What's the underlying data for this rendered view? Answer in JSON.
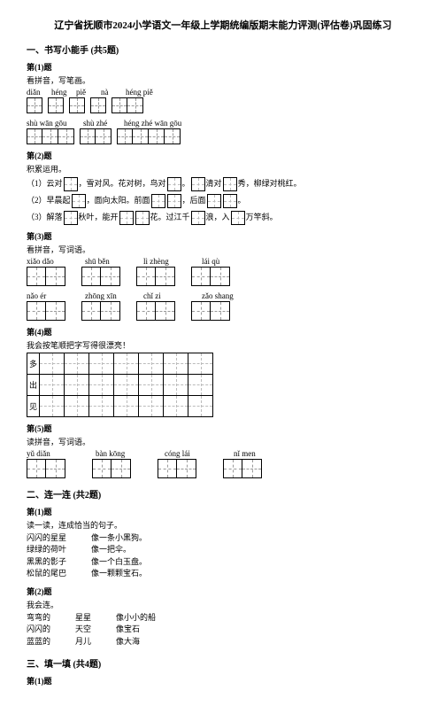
{
  "title": "辽宁省抚顺市2024小学语文一年级上学期统编版期末能力评测(评估卷)巩固练习",
  "sections": {
    "s1": {
      "heading": "一、书写小能手 (共5题)"
    },
    "s2": {
      "heading": "二、连一连 (共2题)"
    },
    "s3": {
      "heading": "三、填一填 (共4题)"
    }
  },
  "q1": {
    "num": "第(1)题",
    "text": "看拼音，写笔画。",
    "row1_pinyin": [
      "diǎn",
      "héng",
      "piě",
      "nà",
      "héng piě"
    ],
    "row2_pinyin": [
      "shù wān gōu",
      "shù zhé",
      "héng zhé wān gōu"
    ]
  },
  "q2": {
    "num": "第(2)题",
    "text": "积累运用。",
    "line1a": "（1）云对",
    "line1b": "，雪对风。花对树，鸟对",
    "line1c": "。",
    "line1d": "清对",
    "line1e": "秀，柳绿对桃红。",
    "line2a": "（2）早晨起",
    "line2b": "，面向太阳。前面",
    "line2c": "，后面",
    "line2d": "。",
    "line3a": "（3）解落",
    "line3b": "秋叶，能开",
    "line3c": "花。过江千",
    "line3d": "浪，入",
    "line3e": "万竿斜。"
  },
  "q3": {
    "num": "第(3)题",
    "text": "看拼音，写词语。",
    "row1_labels": [
      "xiǎo  dǎo",
      "shū  běn",
      "lì  zhèng",
      "lái  qù"
    ],
    "row2_labels": [
      "nǎo  ér",
      "zhōng  xīn",
      "chǐ  zi",
      "zǎo  shang"
    ]
  },
  "q4": {
    "num": "第(4)题",
    "text": "我会按笔顺把字写得很漂亮！",
    "chars": [
      "多",
      "出",
      "见"
    ]
  },
  "q5": {
    "num": "第(5)题",
    "text": "读拼音，写词语。",
    "labels": [
      "yǔ diǎn",
      "bàn kōng",
      "cóng lái",
      "nǐ men"
    ]
  },
  "q6": {
    "num": "第(1)题",
    "text": "读一读，连成恰当的句子。",
    "left": [
      "闪闪的星星",
      "绿绿的荷叶",
      "黑黑的影子",
      "松鼠的尾巴"
    ],
    "right": [
      "像一条小黑狗。",
      "像一把伞。",
      "像一个白玉盘。",
      "像一颗颗宝石。"
    ]
  },
  "q7": {
    "num": "第(2)题",
    "text": "我会连。",
    "c1": [
      "弯弯的",
      "闪闪的",
      "蓝蓝的"
    ],
    "c2": [
      "星星",
      "天空",
      "月儿"
    ],
    "c3": [
      "像小小的船",
      "像宝石",
      "像大海"
    ]
  },
  "q8": {
    "num": "第(1)题"
  },
  "style": {
    "cell_small": 18,
    "cell_word": 22,
    "cell_q5": 22
  }
}
